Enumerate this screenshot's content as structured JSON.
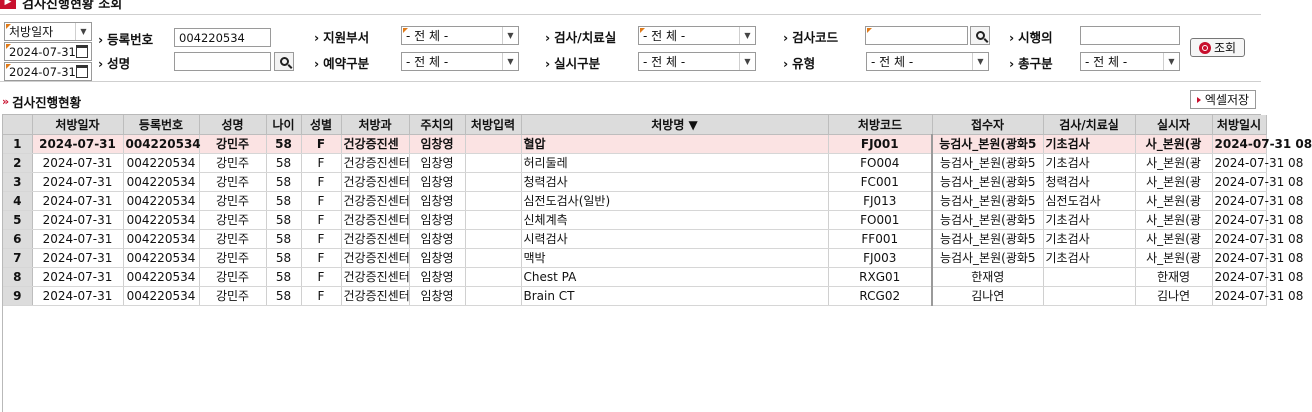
{
  "window": {
    "title": "검사진행현황 조회"
  },
  "filters": {
    "date_type": {
      "value": "처방일자"
    },
    "date_from": "2024-07-31",
    "date_to": "2024-07-31",
    "reg_no": {
      "label": "등록번호",
      "value": "004220534"
    },
    "name": {
      "label": "성명",
      "value": ""
    },
    "dept": {
      "label": "지원부서",
      "value": "- 전 체 -"
    },
    "reservation": {
      "label": "예약구분",
      "value": "- 전 체 -"
    },
    "exam_room": {
      "label": "검사/치료실",
      "value": "- 전 체 -"
    },
    "exec_type": {
      "label": "실시구분",
      "value": "- 전 체 -"
    },
    "exam_code": {
      "label": "검사코드",
      "value": ""
    },
    "type": {
      "label": "유형",
      "value": "- 전 체 -"
    },
    "exec_site": {
      "label": "시행의",
      "value": ""
    },
    "total_type": {
      "label": "총구분",
      "value": "- 전 체 -"
    },
    "query_button": "조회"
  },
  "section": {
    "title": "검사진행현황",
    "excel_button": "엑셀저장"
  },
  "table": {
    "headers": [
      "처방일자",
      "등록번호",
      "성명",
      "나이",
      "성별",
      "처방과",
      "주치의",
      "처방입력",
      "처방명 ▼",
      "처방코드",
      "접수자",
      "검사/치료실",
      "실시자",
      "처방일시"
    ],
    "rows": [
      {
        "n": "1",
        "date": "2024-07-31",
        "reg": "004220534",
        "name": "강민주",
        "age": "58",
        "sex": "F",
        "dept": "건강증진센",
        "doc": "임창영",
        "input": "",
        "order": "혈압",
        "code": "FJ001",
        "recv": "능검사_본원(광화5",
        "room": "기초검사",
        "exec": "사_본원(광",
        "time": "2024-07-31 08"
      },
      {
        "n": "2",
        "date": "2024-07-31",
        "reg": "004220534",
        "name": "강민주",
        "age": "58",
        "sex": "F",
        "dept": "건강증진센터",
        "doc": "임창영",
        "input": "",
        "order": "허리둘레",
        "code": "FO004",
        "recv": "능검사_본원(광화5",
        "room": "기초검사",
        "exec": "사_본원(광",
        "time": "2024-07-31 08"
      },
      {
        "n": "3",
        "date": "2024-07-31",
        "reg": "004220534",
        "name": "강민주",
        "age": "58",
        "sex": "F",
        "dept": "건강증진센터",
        "doc": "임창영",
        "input": "",
        "order": "청력검사",
        "code": "FC001",
        "recv": "능검사_본원(광화5",
        "room": "청력검사",
        "exec": "사_본원(광",
        "time": "2024-07-31 08"
      },
      {
        "n": "4",
        "date": "2024-07-31",
        "reg": "004220534",
        "name": "강민주",
        "age": "58",
        "sex": "F",
        "dept": "건강증진센터",
        "doc": "임창영",
        "input": "",
        "order": "심전도검사(일반)",
        "code": "FJ013",
        "recv": "능검사_본원(광화5",
        "room": "심전도검사",
        "exec": "사_본원(광",
        "time": "2024-07-31 08"
      },
      {
        "n": "5",
        "date": "2024-07-31",
        "reg": "004220534",
        "name": "강민주",
        "age": "58",
        "sex": "F",
        "dept": "건강증진센터",
        "doc": "임창영",
        "input": "",
        "order": "신체계측",
        "code": "FO001",
        "recv": "능검사_본원(광화5",
        "room": "기초검사",
        "exec": "사_본원(광",
        "time": "2024-07-31 08"
      },
      {
        "n": "6",
        "date": "2024-07-31",
        "reg": "004220534",
        "name": "강민주",
        "age": "58",
        "sex": "F",
        "dept": "건강증진센터",
        "doc": "임창영",
        "input": "",
        "order": "시력검사",
        "code": "FF001",
        "recv": "능검사_본원(광화5",
        "room": "기초검사",
        "exec": "사_본원(광",
        "time": "2024-07-31 08"
      },
      {
        "n": "7",
        "date": "2024-07-31",
        "reg": "004220534",
        "name": "강민주",
        "age": "58",
        "sex": "F",
        "dept": "건강증진센터",
        "doc": "임창영",
        "input": "",
        "order": "맥박",
        "code": "FJ003",
        "recv": "능검사_본원(광화5",
        "room": "기초검사",
        "exec": "사_본원(광",
        "time": "2024-07-31 08"
      },
      {
        "n": "8",
        "date": "2024-07-31",
        "reg": "004220534",
        "name": "강민주",
        "age": "58",
        "sex": "F",
        "dept": "건강증진센터",
        "doc": "임창영",
        "input": "",
        "order": "Chest PA",
        "code": "RXG01",
        "recv": "한재영",
        "room": "",
        "exec": "한재영",
        "time": "2024-07-31 08"
      },
      {
        "n": "9",
        "date": "2024-07-31",
        "reg": "004220534",
        "name": "강민주",
        "age": "58",
        "sex": "F",
        "dept": "건강증진센터",
        "doc": "임창영",
        "input": "",
        "order": "Brain CT",
        "code": "RCG02",
        "recv": "김나연",
        "room": "",
        "exec": "김나연",
        "time": "2024-07-31 08"
      }
    ]
  }
}
